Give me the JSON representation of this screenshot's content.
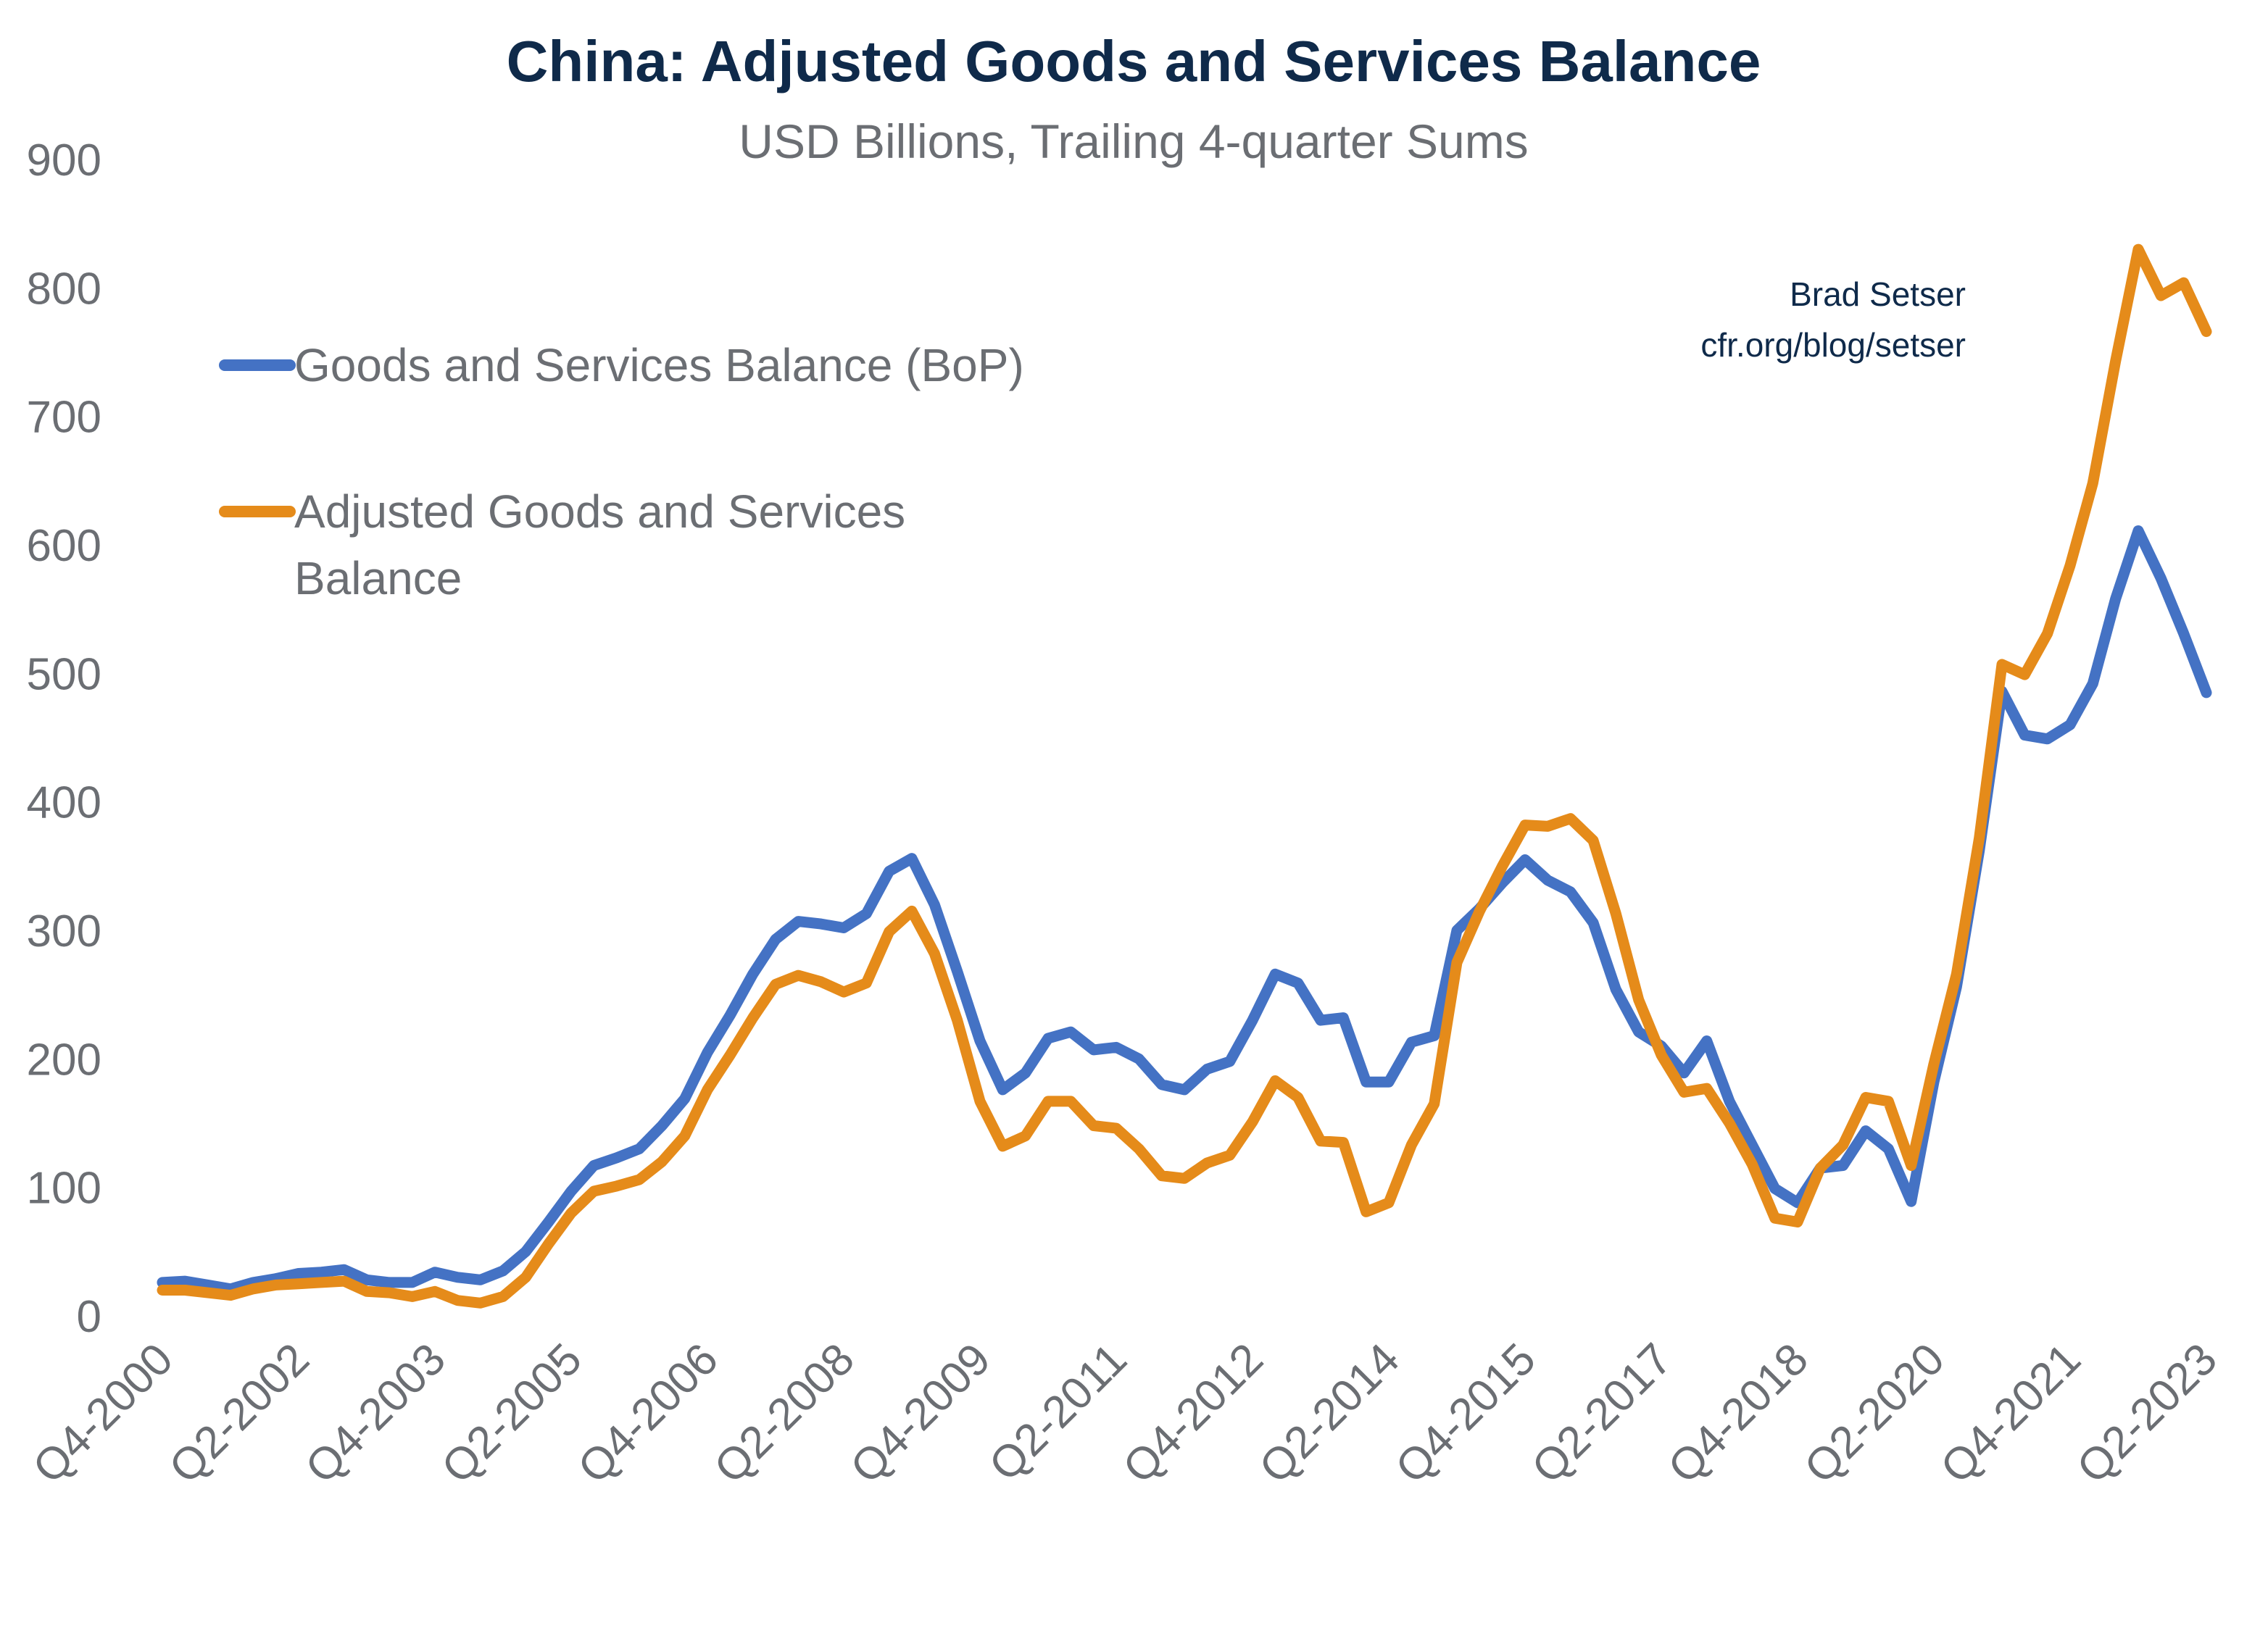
{
  "chart_data": {
    "type": "line",
    "title": "China: Adjusted Goods and Services Balance",
    "subtitle": "USD Billions, Trailing 4-quarter Sums",
    "attribution": [
      "Brad Setser",
      "cfr.org/blog/setser"
    ],
    "xlabel": "",
    "ylabel": "",
    "ylim": [
      0,
      900
    ],
    "yticks": [
      0,
      100,
      200,
      300,
      400,
      500,
      600,
      700,
      800,
      900
    ],
    "xtick_labels": [
      "Q4-2000",
      "Q2-2002",
      "Q4-2003",
      "Q2-2005",
      "Q4-2006",
      "Q2-2008",
      "Q4-2009",
      "Q2-2011",
      "Q4-2012",
      "Q2-2014",
      "Q4-2015",
      "Q2-2017",
      "Q4-2018",
      "Q2-2020",
      "Q4-2021",
      "Q2-2023"
    ],
    "x": [
      "Q4-2000",
      "Q1-2001",
      "Q2-2001",
      "Q3-2001",
      "Q4-2001",
      "Q1-2002",
      "Q2-2002",
      "Q3-2002",
      "Q4-2002",
      "Q1-2003",
      "Q2-2003",
      "Q3-2003",
      "Q4-2003",
      "Q1-2004",
      "Q2-2004",
      "Q3-2004",
      "Q4-2004",
      "Q1-2005",
      "Q2-2005",
      "Q3-2005",
      "Q4-2005",
      "Q1-2006",
      "Q2-2006",
      "Q3-2006",
      "Q4-2006",
      "Q1-2007",
      "Q2-2007",
      "Q3-2007",
      "Q4-2007",
      "Q1-2008",
      "Q2-2008",
      "Q3-2008",
      "Q4-2008",
      "Q1-2009",
      "Q2-2009",
      "Q3-2009",
      "Q4-2009",
      "Q1-2010",
      "Q2-2010",
      "Q3-2010",
      "Q4-2010",
      "Q1-2011",
      "Q2-2011",
      "Q3-2011",
      "Q4-2011",
      "Q1-2012",
      "Q2-2012",
      "Q3-2012",
      "Q4-2012",
      "Q1-2013",
      "Q2-2013",
      "Q3-2013",
      "Q4-2013",
      "Q1-2014",
      "Q2-2014",
      "Q3-2014",
      "Q4-2014",
      "Q1-2015",
      "Q2-2015",
      "Q3-2015",
      "Q4-2015",
      "Q1-2016",
      "Q2-2016",
      "Q3-2016",
      "Q4-2016",
      "Q1-2017",
      "Q2-2017",
      "Q3-2017",
      "Q4-2017",
      "Q1-2018",
      "Q2-2018",
      "Q3-2018",
      "Q4-2018",
      "Q1-2019",
      "Q2-2019",
      "Q3-2019",
      "Q4-2019",
      "Q1-2020",
      "Q2-2020",
      "Q3-2020",
      "Q4-2020",
      "Q1-2021",
      "Q2-2021",
      "Q3-2021",
      "Q4-2021",
      "Q1-2022",
      "Q2-2022",
      "Q3-2022",
      "Q4-2022",
      "Q1-2023",
      "Q2-2023"
    ],
    "legend_placement": "top-left",
    "grid": false,
    "series": [
      {
        "name": "Goods and Services Balance (BoP)",
        "color": "#4472c4",
        "values": [
          26,
          27,
          24,
          21,
          26,
          29,
          33,
          34,
          36,
          28,
          26,
          26,
          34,
          30,
          28,
          35,
          50,
          73,
          97,
          117,
          123,
          130,
          148,
          169,
          205,
          234,
          266,
          293,
          307,
          305,
          302,
          313,
          346,
          356,
          320,
          268,
          214,
          176,
          189,
          216,
          221,
          207,
          209,
          200,
          180,
          176,
          192,
          198,
          230,
          266,
          259,
          230,
          232,
          182,
          182,
          213,
          218,
          300,
          317,
          337,
          355,
          339,
          330,
          306,
          254,
          221,
          210,
          189,
          214,
          167,
          133,
          99,
          88,
          115,
          117,
          144,
          130,
          89,
          182,
          256,
          362,
          486,
          452,
          449,
          460,
          492,
          558,
          611,
          574,
          531,
          485
        ]
      },
      {
        "name": "Adjusted Goods and Services Balance",
        "name_lines": [
          "Adjusted Goods and Services",
          "Balance"
        ],
        "color": "#e58b1a",
        "values": [
          20,
          20,
          18,
          16,
          21,
          24,
          25,
          26,
          27,
          19,
          18,
          15,
          19,
          12,
          10,
          15,
          30,
          56,
          80,
          97,
          101,
          106,
          120,
          140,
          176,
          203,
          232,
          258,
          265,
          260,
          252,
          259,
          299,
          315,
          282,
          230,
          167,
          132,
          140,
          167,
          167,
          148,
          146,
          130,
          109,
          107,
          119,
          125,
          151,
          183,
          170,
          136,
          135,
          81,
          88,
          133,
          165,
          275,
          315,
          350,
          382,
          381,
          387,
          370,
          313,
          246,
          203,
          174,
          177,
          150,
          118,
          76,
          73,
          115,
          133,
          170,
          167,
          117,
          196,
          266,
          372,
          507,
          499,
          531,
          584,
          648,
          743,
          830,
          794,
          804,
          766
        ]
      }
    ]
  }
}
